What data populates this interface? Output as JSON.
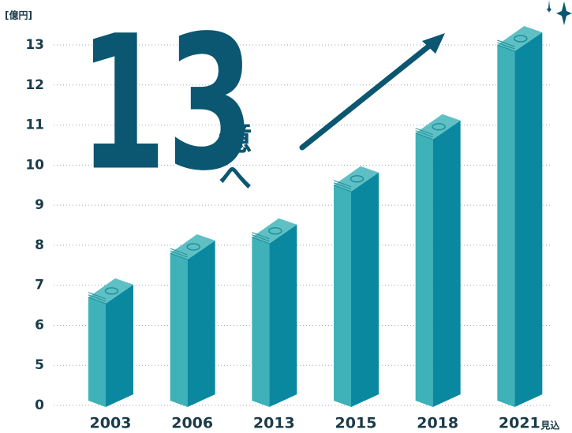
{
  "chart_data": {
    "type": "bar",
    "unit_label": "[億円]",
    "headline": {
      "number": "13",
      "unit": "億",
      "particle": "へ"
    },
    "categories": [
      "2003",
      "2006",
      "2013",
      "2015",
      "2018",
      "2021"
    ],
    "category_notes": [
      null,
      null,
      null,
      null,
      null,
      "見込"
    ],
    "values": [
      6.7,
      7.8,
      8.2,
      9.5,
      10.8,
      13
    ],
    "colors": {
      "left": "#3fb1b8",
      "right": "#0a88a0",
      "top": "#5ec0c4"
    },
    "ylim": [
      0,
      13
    ],
    "yticks": [
      0,
      5,
      6,
      7,
      8,
      9,
      10,
      11,
      12,
      13
    ],
    "broken_axis": true,
    "grid": true
  }
}
